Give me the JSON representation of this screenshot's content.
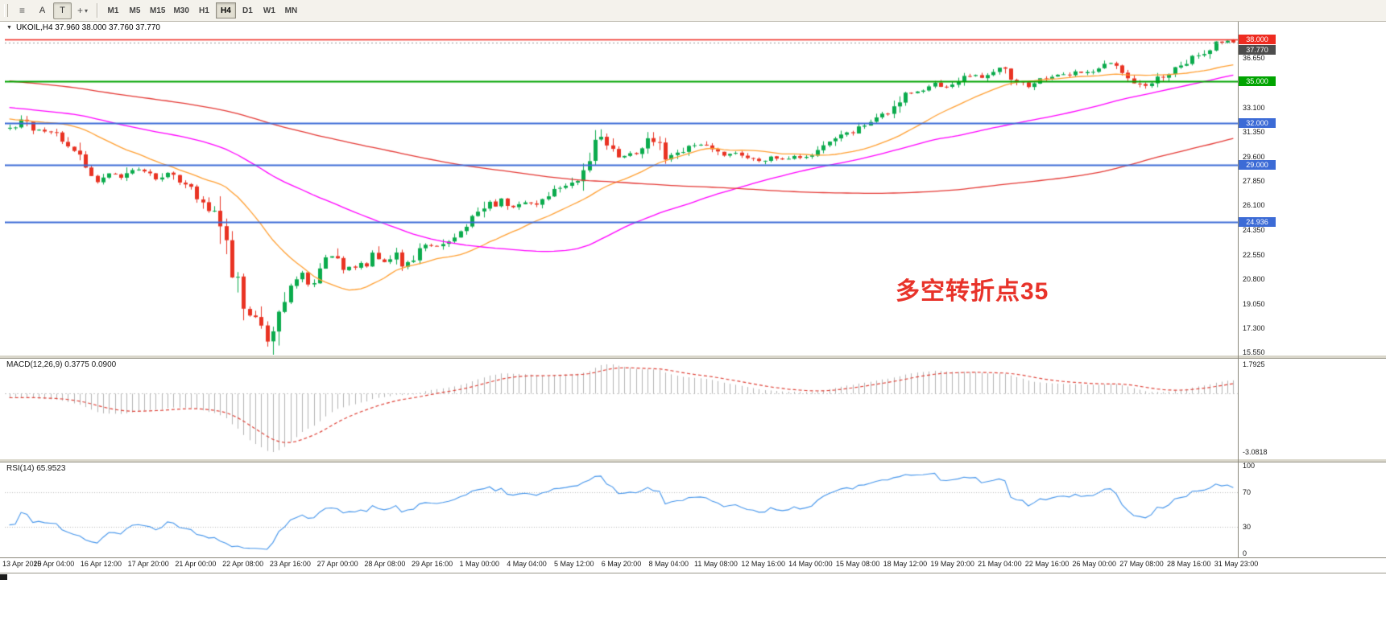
{
  "toolbar": {
    "tool_buttons": [
      {
        "label": "A"
      },
      {
        "label": "T"
      }
    ],
    "timeframes": [
      "M1",
      "M5",
      "M15",
      "M30",
      "H1",
      "H4",
      "D1",
      "W1",
      "MN"
    ],
    "active_timeframe": "H4"
  },
  "icons": {
    "triangle_down": "▼",
    "menu": "≡",
    "crosshair": "+",
    "caret_down": "▾"
  },
  "chart": {
    "title": "UKOIL,H4 37.960 38.000 37.760 37.770",
    "symbol": "UKOIL",
    "period": "H4",
    "open": "37.960",
    "high": "38.000",
    "low": "37.760",
    "close": "37.770",
    "annotation": {
      "text": "多空转折点35",
      "color": "#e8332a"
    }
  },
  "colors": {
    "bull": "#0bab4d",
    "bear": "#e93323",
    "background": "#ffffff",
    "macd_hist": "#b3b3b3",
    "macd_signal": "#e0443a",
    "rsi_line": "#4696ec",
    "axis_text": "#1a1a1a"
  },
  "hlines": [
    {
      "value": 38.0,
      "color": "#ee2b20",
      "style": "solid",
      "width": 1.5
    },
    {
      "value": 37.77,
      "color": "#999999",
      "style": "dot",
      "width": 1
    },
    {
      "value": 35.0,
      "color": "#00a400",
      "style": "solid",
      "width": 2
    },
    {
      "value": 32.0,
      "color": "#3c6bd6",
      "style": "solid",
      "width": 1.8
    },
    {
      "value": 29.0,
      "color": "#3c6bd6",
      "style": "solid",
      "width": 1.8
    },
    {
      "value": 24.936,
      "color": "#3c6bd6",
      "style": "solid",
      "width": 1.8
    }
  ],
  "price_axis": {
    "ticks": [
      {
        "label": "36.650",
        "value": 36.65
      },
      {
        "label": "33.100",
        "value": 33.1
      },
      {
        "label": "31.350",
        "value": 31.35
      },
      {
        "label": "29.600",
        "value": 29.6
      },
      {
        "label": "27.850",
        "value": 27.85
      },
      {
        "label": "26.100",
        "value": 26.1
      },
      {
        "label": "24.350",
        "value": 24.35
      },
      {
        "label": "22.550",
        "value": 22.55
      },
      {
        "label": "20.800",
        "value": 20.8
      },
      {
        "label": "19.050",
        "value": 19.05
      },
      {
        "label": "17.300",
        "value": 17.3
      },
      {
        "label": "15.550",
        "value": 15.55
      }
    ],
    "boxes": [
      {
        "label": "38.000",
        "value": 38.0,
        "color": "#ee2b20"
      },
      {
        "label": "37.770",
        "value": 37.77,
        "color": "#4d4d4d"
      },
      {
        "label": "35.000",
        "value": 35.0,
        "color": "#00a400"
      },
      {
        "label": "32.000",
        "value": 32.0,
        "color": "#3c6bd6"
      },
      {
        "label": "29.000",
        "value": 29.0,
        "color": "#3c6bd6"
      },
      {
        "label": "24.936",
        "value": 24.936,
        "color": "#3c6bd6"
      }
    ]
  },
  "macd": {
    "label": "MACD(12,26,9) 0.3775 0.0900",
    "fast": 12,
    "slow": 26,
    "signal": 9,
    "axis_max_label": "1.7925",
    "axis_min_label": "-3.0818"
  },
  "rsi": {
    "label": "RSI(14) 65.9523",
    "period": 14,
    "levels": [
      100,
      70,
      30,
      0
    ],
    "dotted_levels": [
      70,
      30
    ]
  },
  "time_axis": [
    "13 Apr 2020",
    "15 Apr 04:00",
    "16 Apr 12:00",
    "17 Apr 20:00",
    "21 Apr 00:00",
    "22 Apr 08:00",
    "23 Apr 16:00",
    "27 Apr 00:00",
    "28 Apr 08:00",
    "29 Apr 16:00",
    "1 May 00:00",
    "4 May 04:00",
    "5 May 12:00",
    "6 May 20:00",
    "8 May 04:00",
    "11 May 08:00",
    "12 May 16:00",
    "14 May 00:00",
    "15 May 08:00",
    "18 May 12:00",
    "19 May 20:00",
    "21 May 04:00",
    "22 May 16:00",
    "26 May 00:00",
    "27 May 08:00",
    "28 May 16:00",
    "31 May 23:00"
  ],
  "chart_data": {
    "type": "candlestick",
    "symbol": "UKOIL",
    "timeframe": "H4",
    "range": {
      "start": "13 Apr 2020",
      "end": "31 May 23:00"
    },
    "bars": 210,
    "y_range": [
      15.4,
      38.45
    ],
    "last_bar": [
      37.96,
      38.0,
      37.76,
      37.77
    ],
    "price_path": [
      [
        0,
        31.6
      ],
      [
        2,
        32.25
      ],
      [
        4,
        31.6
      ],
      [
        6,
        31.45
      ],
      [
        8,
        31.3
      ],
      [
        11,
        30.1
      ],
      [
        13,
        28.9
      ],
      [
        15,
        27.85
      ],
      [
        17,
        28.45
      ],
      [
        19,
        28.05
      ],
      [
        21,
        28.75
      ],
      [
        23,
        28.45
      ],
      [
        25,
        28.0
      ],
      [
        27,
        28.5
      ],
      [
        29,
        27.85
      ],
      [
        31,
        27.4
      ],
      [
        33,
        26.4
      ],
      [
        35,
        25.5
      ],
      [
        36,
        24.6
      ],
      [
        38,
        21.6
      ],
      [
        40,
        18.8
      ],
      [
        41,
        18.1
      ],
      [
        42,
        18.4
      ],
      [
        43,
        16.9
      ],
      [
        44,
        16.2
      ],
      [
        45,
        17.4
      ],
      [
        47,
        19.3
      ],
      [
        48,
        20.2
      ],
      [
        50,
        21.3
      ],
      [
        51,
        20.4
      ],
      [
        53,
        21.5
      ],
      [
        55,
        22.5
      ],
      [
        57,
        21.4
      ],
      [
        59,
        21.7
      ],
      [
        61,
        22.1
      ],
      [
        62,
        22.9
      ],
      [
        64,
        22.1
      ],
      [
        66,
        22.7
      ],
      [
        67,
        21.8
      ],
      [
        69,
        22.4
      ],
      [
        71,
        23.2
      ],
      [
        73,
        23.1
      ],
      [
        75,
        23.7
      ],
      [
        77,
        24.2
      ],
      [
        78,
        24.7
      ],
      [
        80,
        25.4
      ],
      [
        82,
        26.3
      ],
      [
        83,
        26.1
      ],
      [
        84,
        26.5
      ],
      [
        86,
        25.9
      ],
      [
        88,
        26.3
      ],
      [
        90,
        26.2
      ],
      [
        92,
        26.9
      ],
      [
        94,
        27.4
      ],
      [
        96,
        27.7
      ],
      [
        98,
        28.9
      ],
      [
        100,
        30.3
      ],
      [
        101,
        31.0
      ],
      [
        102,
        30.4
      ],
      [
        104,
        29.5
      ],
      [
        106,
        29.9
      ],
      [
        108,
        29.8
      ],
      [
        109,
        30.9
      ],
      [
        111,
        30.2
      ],
      [
        112,
        29.4
      ],
      [
        114,
        29.7
      ],
      [
        116,
        30.2
      ],
      [
        118,
        30.5
      ],
      [
        120,
        30.0
      ],
      [
        122,
        29.6
      ],
      [
        124,
        29.9
      ],
      [
        126,
        29.5
      ],
      [
        128,
        29.3
      ],
      [
        130,
        29.6
      ],
      [
        132,
        29.4
      ],
      [
        134,
        29.7
      ],
      [
        136,
        29.5
      ],
      [
        138,
        29.9
      ],
      [
        140,
        30.5
      ],
      [
        142,
        31.1
      ],
      [
        144,
        31.3
      ],
      [
        146,
        31.9
      ],
      [
        148,
        32.4
      ],
      [
        150,
        32.7
      ],
      [
        152,
        33.5
      ],
      [
        154,
        34.3
      ],
      [
        156,
        34.3
      ],
      [
        158,
        34.8
      ],
      [
        160,
        34.5
      ],
      [
        162,
        34.9
      ],
      [
        164,
        35.4
      ],
      [
        166,
        35.3
      ],
      [
        168,
        35.8
      ],
      [
        170,
        36.1
      ],
      [
        171,
        35.3
      ],
      [
        173,
        34.8
      ],
      [
        174,
        34.6
      ],
      [
        176,
        35.1
      ],
      [
        178,
        35.4
      ],
      [
        180,
        35.4
      ],
      [
        182,
        35.7
      ],
      [
        184,
        35.6
      ],
      [
        186,
        36.0
      ],
      [
        188,
        36.3
      ],
      [
        190,
        35.7
      ],
      [
        192,
        35.1
      ],
      [
        193,
        34.6
      ],
      [
        195,
        34.9
      ],
      [
        197,
        35.4
      ],
      [
        198,
        35.7
      ],
      [
        200,
        36.2
      ],
      [
        202,
        36.7
      ],
      [
        204,
        37.1
      ],
      [
        206,
        37.7
      ],
      [
        208,
        37.9
      ],
      [
        209,
        37.77
      ]
    ],
    "spikes": [
      {
        "i": 2,
        "high": 32.55
      },
      {
        "i": 44,
        "low": 15.98
      },
      {
        "i": 101,
        "high": 31.55
      },
      {
        "i": 109,
        "high": 31.35
      }
    ],
    "moving_averages": [
      {
        "period": 21,
        "color": "#ffa033"
      },
      {
        "period": 60,
        "color": "#ff00ff"
      },
      {
        "period": 150,
        "color": "#e53935"
      }
    ]
  }
}
